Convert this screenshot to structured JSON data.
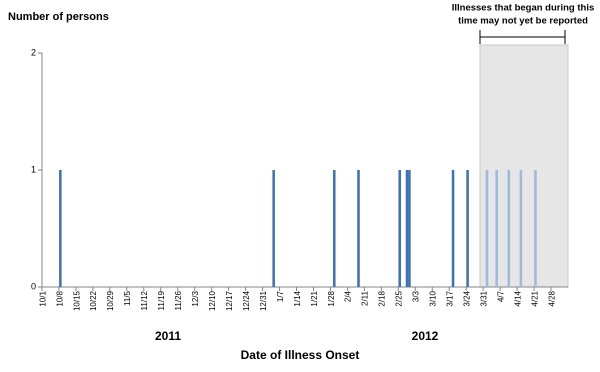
{
  "chart_data": {
    "type": "bar",
    "y_label": "Number of persons",
    "x_label": "Date of Illness Onset",
    "year_labels": [
      "2011",
      "2012"
    ],
    "annotation": [
      "Illnesses that began during this",
      "time may not yet be reported"
    ],
    "ylim": [
      0,
      2
    ],
    "yticks": [
      0,
      1,
      2
    ],
    "categories": [
      "10/1",
      null,
      null,
      null,
      null,
      null,
      null,
      "10/8",
      null,
      null,
      null,
      null,
      null,
      null,
      "10/15",
      null,
      null,
      null,
      null,
      null,
      null,
      "10/22",
      null,
      null,
      null,
      null,
      null,
      null,
      "10/29",
      null,
      null,
      null,
      null,
      null,
      null,
      "11/5",
      null,
      null,
      null,
      null,
      null,
      null,
      "11/12",
      null,
      null,
      null,
      null,
      null,
      null,
      "11/19",
      null,
      null,
      null,
      null,
      null,
      null,
      "11/26",
      null,
      null,
      null,
      null,
      null,
      null,
      "12/3",
      null,
      null,
      null,
      null,
      null,
      null,
      "12/10",
      null,
      null,
      null,
      null,
      null,
      null,
      "12/17",
      null,
      null,
      null,
      null,
      null,
      null,
      "12/24",
      null,
      null,
      null,
      null,
      null,
      null,
      "12/31",
      null,
      null,
      null,
      null,
      null,
      null,
      "1/7",
      null,
      null,
      null,
      null,
      null,
      null,
      "1/14",
      null,
      null,
      null,
      null,
      null,
      null,
      "1/21",
      null,
      null,
      null,
      null,
      null,
      null,
      "1/28",
      null,
      null,
      null,
      null,
      null,
      null,
      "2/4",
      null,
      null,
      null,
      null,
      null,
      null,
      "2/11",
      null,
      null,
      null,
      null,
      null,
      null,
      "2/18",
      null,
      null,
      null,
      null,
      null,
      null,
      "2/25",
      null,
      null,
      null,
      null,
      null,
      null,
      "3/3",
      null,
      null,
      null,
      null,
      null,
      null,
      "3/10",
      null,
      null,
      null,
      null,
      null,
      null,
      "3/17",
      null,
      null,
      null,
      null,
      null,
      null,
      "3/24",
      null,
      null,
      null,
      null,
      null,
      null,
      "3/31",
      null,
      null,
      null,
      null,
      null,
      null,
      "4/7",
      null,
      null,
      null,
      null,
      null,
      null,
      "4/14",
      null,
      null,
      null,
      null,
      null,
      null,
      "4/21",
      null,
      null,
      null,
      null,
      null,
      null,
      "4/28",
      null,
      null,
      null,
      null,
      null,
      null
    ],
    "series": [
      {
        "color": "#3f72b5",
        "values": [
          0,
          0,
          0,
          0,
          0,
          0,
          0,
          1,
          0,
          0,
          0,
          0,
          0,
          0,
          0,
          0,
          0,
          0,
          0,
          0,
          0,
          0,
          0,
          0,
          0,
          0,
          0,
          0,
          0,
          0,
          0,
          0,
          0,
          0,
          0,
          0,
          0,
          0,
          0,
          0,
          0,
          0,
          0,
          0,
          0,
          0,
          0,
          0,
          0,
          0,
          0,
          0,
          0,
          0,
          0,
          0,
          0,
          0,
          0,
          0,
          0,
          0,
          0,
          0,
          0,
          0,
          0,
          0,
          0,
          0,
          0,
          0,
          0,
          0,
          0,
          0,
          0,
          0,
          0,
          0,
          0,
          0,
          0,
          0,
          0,
          0,
          0,
          0,
          0,
          0,
          0,
          0,
          0,
          0,
          0,
          1,
          0,
          0,
          0,
          0,
          0,
          0,
          0,
          0,
          0,
          0,
          0,
          0,
          0,
          0,
          0,
          0,
          0,
          0,
          0,
          0,
          0,
          0,
          0,
          0,
          1,
          0,
          0,
          0,
          0,
          0,
          0,
          0,
          0,
          0,
          1,
          0,
          0,
          0,
          0,
          0,
          0,
          0,
          0,
          0,
          0,
          0,
          0,
          0,
          0,
          0,
          0,
          1,
          0,
          0,
          1,
          1,
          0,
          0,
          0,
          0,
          0,
          0,
          0,
          0,
          0,
          0,
          0,
          0,
          0,
          0,
          0,
          0,
          0,
          1,
          0,
          0,
          0,
          0,
          0,
          1,
          0,
          0,
          0,
          0,
          0,
          0,
          0,
          0,
          0,
          0,
          0,
          0,
          0,
          0,
          0,
          0,
          0,
          0,
          0,
          0,
          0,
          0,
          0,
          0,
          0,
          0,
          0,
          0,
          0,
          0,
          0,
          0,
          0,
          0,
          0,
          0,
          0,
          0,
          0,
          0,
          0
        ]
      },
      {
        "color": "#9db9de",
        "values": [
          0,
          0,
          0,
          0,
          0,
          0,
          0,
          0,
          0,
          0,
          0,
          0,
          0,
          0,
          0,
          0,
          0,
          0,
          0,
          0,
          0,
          0,
          0,
          0,
          0,
          0,
          0,
          0,
          0,
          0,
          0,
          0,
          0,
          0,
          0,
          0,
          0,
          0,
          0,
          0,
          0,
          0,
          0,
          0,
          0,
          0,
          0,
          0,
          0,
          0,
          0,
          0,
          0,
          0,
          0,
          0,
          0,
          0,
          0,
          0,
          0,
          0,
          0,
          0,
          0,
          0,
          0,
          0,
          0,
          0,
          0,
          0,
          0,
          0,
          0,
          0,
          0,
          0,
          0,
          0,
          0,
          0,
          0,
          0,
          0,
          0,
          0,
          0,
          0,
          0,
          0,
          0,
          0,
          0,
          0,
          0,
          0,
          0,
          0,
          0,
          0,
          0,
          0,
          0,
          0,
          0,
          0,
          0,
          0,
          0,
          0,
          0,
          0,
          0,
          0,
          0,
          0,
          0,
          0,
          0,
          0,
          0,
          0,
          0,
          0,
          0,
          0,
          0,
          0,
          0,
          0,
          0,
          0,
          0,
          0,
          0,
          0,
          0,
          0,
          0,
          0,
          0,
          0,
          0,
          0,
          0,
          0,
          0,
          0,
          0,
          0,
          0,
          0,
          0,
          0,
          0,
          0,
          0,
          0,
          0,
          0,
          0,
          0,
          0,
          0,
          0,
          0,
          0,
          0,
          0,
          0,
          0,
          0,
          0,
          0,
          0,
          0,
          0,
          0,
          0,
          0,
          0,
          0,
          1,
          0,
          0,
          0,
          1,
          0,
          0,
          0,
          0,
          1,
          0,
          0,
          0,
          0,
          1,
          0,
          0,
          0,
          0,
          0,
          1,
          0,
          0,
          0,
          0,
          0,
          0,
          0,
          0,
          0,
          0,
          0,
          0,
          0
        ]
      }
    ]
  }
}
